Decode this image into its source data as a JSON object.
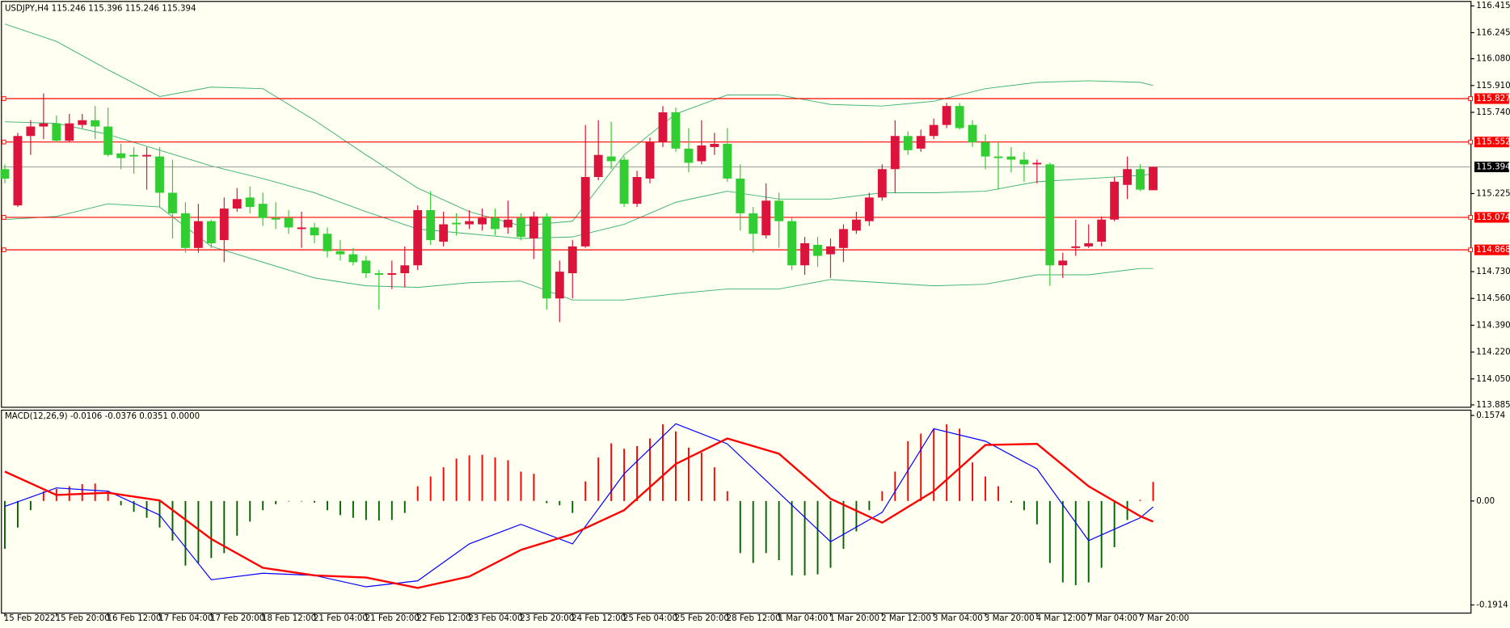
{
  "chart_data": [
    {
      "type": "candlestick",
      "title": "USDJPY,H4  115.246 115.396 115.246 115.394",
      "up_color": "#dc143c",
      "down_color": "#32cd32",
      "open": [
        115.38,
        115.15,
        115.59,
        115.65,
        115.67,
        115.56,
        115.66,
        115.69,
        115.65,
        115.48,
        115.47,
        115.46,
        115.46,
        115.23,
        115.1,
        114.88,
        115.05,
        114.93,
        115.13,
        115.2,
        115.16,
        115.07,
        115.07,
        115.0,
        115.01,
        114.97,
        114.86,
        114.84,
        114.8,
        114.72,
        114.71,
        114.72,
        114.77,
        115.12,
        114.92,
        115.04,
        115.03,
        115.03,
        115.07,
        115.01,
        115.07,
        114.94,
        115.08,
        114.56,
        114.72,
        114.89,
        115.33,
        115.46,
        115.44,
        115.16,
        115.32,
        115.55,
        115.74,
        115.51,
        115.43,
        115.52,
        115.54,
        115.32,
        115.1,
        114.96,
        115.18,
        115.05,
        114.77,
        114.9,
        114.84,
        114.88,
        114.99,
        115.05,
        115.2,
        115.38,
        115.59,
        115.51,
        115.59,
        115.66,
        115.78,
        115.66,
        115.55,
        115.46,
        115.46,
        115.44,
        115.41,
        115.41,
        114.77,
        114.88,
        114.89,
        114.92,
        115.06,
        115.28,
        115.38,
        115.246
      ],
      "high": [
        115.41,
        115.61,
        115.69,
        115.86,
        115.72,
        115.73,
        115.73,
        115.78,
        115.77,
        115.54,
        115.52,
        115.52,
        115.52,
        115.44,
        115.17,
        115.16,
        115.06,
        115.2,
        115.26,
        115.27,
        115.23,
        115.17,
        115.12,
        115.11,
        115.04,
        115.01,
        114.93,
        114.88,
        114.83,
        114.74,
        114.8,
        114.89,
        115.15,
        115.24,
        115.11,
        115.1,
        115.12,
        115.13,
        115.13,
        115.18,
        115.1,
        115.11,
        115.1,
        114.8,
        114.93,
        115.66,
        115.69,
        115.68,
        115.46,
        115.37,
        115.58,
        115.78,
        115.77,
        115.64,
        115.69,
        115.61,
        115.64,
        115.41,
        115.14,
        115.29,
        115.23,
        115.07,
        114.95,
        114.95,
        114.94,
        115.03,
        115.11,
        115.23,
        115.41,
        115.69,
        115.62,
        115.63,
        115.7,
        115.8,
        115.8,
        115.69,
        115.6,
        115.55,
        115.52,
        115.49,
        115.44,
        115.42,
        114.85,
        115.06,
        115.03,
        115.08,
        115.33,
        115.46,
        115.41,
        115.396
      ],
      "low": [
        115.29,
        115.14,
        115.47,
        115.57,
        115.55,
        115.55,
        115.64,
        115.57,
        115.46,
        115.38,
        115.35,
        115.25,
        115.14,
        114.94,
        114.85,
        114.85,
        114.88,
        114.79,
        115.11,
        115.1,
        115.02,
        115.0,
        114.97,
        114.88,
        114.91,
        114.82,
        114.8,
        114.77,
        114.69,
        114.49,
        114.62,
        114.63,
        114.74,
        114.9,
        114.89,
        114.96,
        115.0,
        114.99,
        114.96,
        114.97,
        114.93,
        114.81,
        114.49,
        114.41,
        114.56,
        114.88,
        115.31,
        115.38,
        115.14,
        115.14,
        115.29,
        115.52,
        115.49,
        115.36,
        115.41,
        115.47,
        115.3,
        114.99,
        114.85,
        114.94,
        114.88,
        114.74,
        114.71,
        114.76,
        114.69,
        114.79,
        114.97,
        115.02,
        115.18,
        115.23,
        115.47,
        115.49,
        115.57,
        115.64,
        115.63,
        115.52,
        115.38,
        115.25,
        115.36,
        115.3,
        115.29,
        114.64,
        114.69,
        114.83,
        114.88,
        114.89,
        115.05,
        115.19,
        115.24,
        115.246
      ],
      "close": [
        115.32,
        115.59,
        115.65,
        115.67,
        115.56,
        115.67,
        115.69,
        115.65,
        115.47,
        115.45,
        115.46,
        115.47,
        115.23,
        115.1,
        114.88,
        115.05,
        114.91,
        115.13,
        115.19,
        115.14,
        115.07,
        115.06,
        115.01,
        115.01,
        114.96,
        114.86,
        114.84,
        114.79,
        114.72,
        114.71,
        114.72,
        114.77,
        115.12,
        114.93,
        115.03,
        115.03,
        115.05,
        115.07,
        115.0,
        115.06,
        114.95,
        115.08,
        114.56,
        114.73,
        114.89,
        115.33,
        115.47,
        115.43,
        115.16,
        115.33,
        115.55,
        115.74,
        115.51,
        115.42,
        115.53,
        115.54,
        115.32,
        115.1,
        114.97,
        115.18,
        115.05,
        114.77,
        114.91,
        114.83,
        114.89,
        115.0,
        115.06,
        115.2,
        115.38,
        115.59,
        115.5,
        115.59,
        115.66,
        115.78,
        115.64,
        115.55,
        115.46,
        115.45,
        115.44,
        115.41,
        115.42,
        114.77,
        114.8,
        114.89,
        114.91,
        115.06,
        115.3,
        115.38,
        115.25,
        115.394
      ],
      "bollinger": {
        "color": "#3cb371",
        "x": [
          0,
          4,
          8,
          12,
          16,
          20,
          24,
          28,
          32,
          36,
          40,
          44,
          48,
          52,
          56,
          60,
          64,
          68,
          72,
          76,
          80,
          84,
          88,
          89
        ],
        "upper": [
          116.3,
          116.19,
          116.01,
          115.84,
          115.9,
          115.89,
          115.69,
          115.47,
          115.26,
          115.11,
          115.02,
          115.05,
          115.47,
          115.73,
          115.85,
          115.85,
          115.79,
          115.78,
          115.81,
          115.89,
          115.93,
          115.94,
          115.93,
          115.91
        ],
        "middle": [
          115.68,
          115.67,
          115.6,
          115.5,
          115.4,
          115.32,
          115.23,
          115.11,
          115.0,
          114.97,
          114.94,
          114.95,
          115.03,
          115.17,
          115.24,
          115.19,
          115.19,
          115.23,
          115.23,
          115.24,
          115.3,
          115.32,
          115.34,
          115.35
        ],
        "lower": [
          115.06,
          115.08,
          115.16,
          115.14,
          114.89,
          114.79,
          114.69,
          114.64,
          114.63,
          114.66,
          114.67,
          114.55,
          114.55,
          114.59,
          114.62,
          114.62,
          114.68,
          114.66,
          114.64,
          114.65,
          114.71,
          114.71,
          114.75,
          114.75
        ]
      },
      "levels": {
        "color": "#ff0000",
        "values": [
          115.827,
          115.552,
          115.074,
          114.868
        ]
      },
      "last_price": 115.394,
      "last_price_color": "#a9a9a9",
      "xlim": [
        -0.15,
        113.6
      ],
      "xticks": [
        {
          "value": 0,
          "label": "15 Feb 2022"
        },
        {
          "value": 4,
          "label": "15 Feb 20:00"
        },
        {
          "value": 8,
          "label": "16 Feb 12:00"
        },
        {
          "value": 12,
          "label": "17 Feb 04:00"
        },
        {
          "value": 16,
          "label": "17 Feb 20:00"
        },
        {
          "value": 20,
          "label": "18 Feb 12:00"
        },
        {
          "value": 24,
          "label": "21 Feb 04:00"
        },
        {
          "value": 28,
          "label": "21 Feb 20:00"
        },
        {
          "value": 32,
          "label": "22 Feb 12:00"
        },
        {
          "value": 36,
          "label": "23 Feb 04:00"
        },
        {
          "value": 40,
          "label": "23 Feb 20:00"
        },
        {
          "value": 44,
          "label": "24 Feb 12:00"
        },
        {
          "value": 48,
          "label": "25 Feb 04:00"
        },
        {
          "value": 52,
          "label": "25 Feb 20:00"
        },
        {
          "value": 56,
          "label": "28 Feb 12:00"
        },
        {
          "value": 60,
          "label": "1 Mar 04:00"
        },
        {
          "value": 64,
          "label": "1 Mar 20:00"
        },
        {
          "value": 68,
          "label": "2 Mar 12:00"
        },
        {
          "value": 72,
          "label": "3 Mar 04:00"
        },
        {
          "value": 76,
          "label": "3 Mar 20:00"
        },
        {
          "value": 80,
          "label": "4 Mar 12:00"
        },
        {
          "value": 84,
          "label": "7 Mar 04:00"
        },
        {
          "value": 88,
          "label": "7 Mar 20:00"
        }
      ],
      "ylim": [
        113.873,
        116.44
      ],
      "yticks": [
        116.415,
        116.245,
        {
          "value": 116.08,
          "label": "116.080"
        },
        {
          "value": 115.91,
          "label": "115.910"
        },
        {
          "value": 115.74,
          "label": "115.740"
        },
        115.225,
        {
          "value": 114.73,
          "label": "114.730"
        },
        {
          "value": 114.56,
          "label": "114.560"
        },
        {
          "value": 114.39,
          "label": "114.390"
        },
        {
          "value": 114.22,
          "label": "114.220"
        },
        {
          "value": 114.05,
          "label": "114.050"
        },
        113.885
      ]
    },
    {
      "type": "macd",
      "title": "MACD(12,26,9) -0.0106 -0.0376 0.0351 0.0000",
      "histogram": {
        "pos_color": "#ff0000",
        "neg_color": "#006400",
        "values": [
          -0.088,
          -0.049,
          -0.017,
          0.018,
          0.022,
          0.027,
          0.031,
          0.032,
          0.018,
          -0.008,
          -0.02,
          -0.031,
          -0.049,
          -0.073,
          -0.119,
          -0.114,
          -0.105,
          -0.096,
          -0.064,
          -0.038,
          -0.017,
          -0.006,
          -0.001,
          -0.001,
          -0.003,
          -0.017,
          -0.026,
          -0.031,
          -0.035,
          -0.036,
          -0.035,
          -0.022,
          0.027,
          0.045,
          0.062,
          0.078,
          0.084,
          0.085,
          0.08,
          0.075,
          0.054,
          0.05,
          -0.004,
          -0.008,
          -0.022,
          0.036,
          0.08,
          0.106,
          0.096,
          0.101,
          0.115,
          0.141,
          0.128,
          0.098,
          0.089,
          0.062,
          0.018,
          -0.096,
          -0.114,
          -0.096,
          -0.109,
          -0.137,
          -0.137,
          -0.135,
          -0.123,
          -0.088,
          -0.056,
          -0.017,
          0.018,
          0.054,
          0.11,
          0.124,
          0.133,
          0.141,
          0.133,
          0.071,
          0.045,
          0.027,
          -0.003,
          -0.017,
          -0.043,
          -0.114,
          -0.15,
          -0.155,
          -0.15,
          -0.123,
          -0.085,
          -0.035,
          0.002,
          0.035
        ]
      },
      "macd": {
        "color": "#0000ff",
        "x": [
          0,
          4,
          8,
          12,
          16,
          20,
          24,
          28,
          32,
          36,
          40,
          44,
          48,
          52,
          56,
          60,
          64,
          68,
          72,
          76,
          80,
          84,
          88,
          89
        ],
        "values": [
          -0.01,
          0.024,
          0.018,
          -0.026,
          -0.145,
          -0.133,
          -0.137,
          -0.158,
          -0.147,
          -0.079,
          -0.043,
          -0.079,
          0.05,
          0.142,
          0.105,
          0.015,
          -0.075,
          -0.021,
          0.133,
          0.11,
          0.059,
          -0.073,
          -0.031,
          -0.011
        ]
      },
      "signal": {
        "color": "#ff0000",
        "x": [
          0,
          4,
          8,
          12,
          16,
          20,
          24,
          28,
          32,
          36,
          40,
          44,
          48,
          52,
          56,
          60,
          64,
          68,
          72,
          76,
          80,
          84,
          88,
          89
        ],
        "values": [
          0.054,
          0.011,
          0.015,
          0.001,
          -0.07,
          -0.123,
          -0.137,
          -0.141,
          -0.16,
          -0.139,
          -0.09,
          -0.061,
          -0.017,
          0.068,
          0.115,
          0.087,
          0.004,
          -0.04,
          0.018,
          0.103,
          0.105,
          0.027,
          -0.028,
          -0.038
        ]
      },
      "ylim": [
        -0.2055,
        0.1662
      ],
      "yticks": [
        0.1574,
        {
          "value": 0,
          "label": "0.00"
        },
        -0.1914
      ]
    }
  ]
}
